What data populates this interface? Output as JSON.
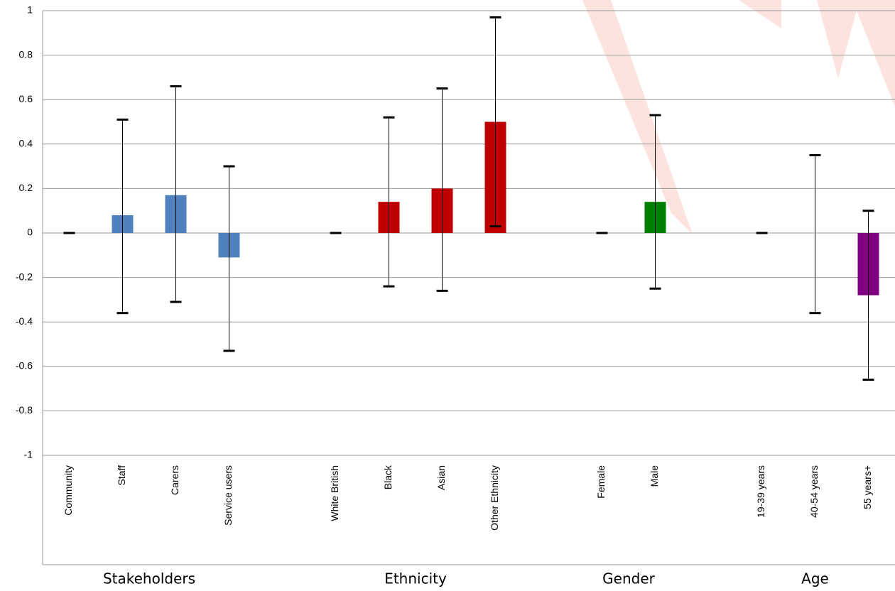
{
  "chart_data": {
    "type": "bar",
    "categories": [
      "Community",
      "Staff",
      "Carers",
      "Service users",
      null,
      "White British",
      "Black",
      "Asian",
      "Other Ethnicity",
      null,
      "Female",
      "Male",
      null,
      "19-39 years",
      "40-54 years",
      "55 years+"
    ],
    "series": [
      {
        "name": "Stakeholders",
        "color": "#4f81bd",
        "values": [
          0,
          0.08,
          0.17,
          -0.11,
          null,
          null,
          null,
          null,
          null,
          null,
          null,
          null,
          null,
          null,
          null,
          null
        ],
        "low": [
          0,
          -0.36,
          -0.31,
          -0.53,
          null,
          null,
          null,
          null,
          null,
          null,
          null,
          null,
          null,
          null,
          null,
          null
        ],
        "high": [
          0,
          0.51,
          0.66,
          0.3,
          null,
          null,
          null,
          null,
          null,
          null,
          null,
          null,
          null,
          null,
          null,
          null
        ]
      },
      {
        "name": "Ethnicity",
        "color": "#c00000",
        "values": [
          null,
          null,
          null,
          null,
          null,
          0,
          0.14,
          0.2,
          0.5,
          null,
          null,
          null,
          null,
          null,
          null,
          null
        ],
        "low": [
          null,
          null,
          null,
          null,
          null,
          0,
          -0.24,
          -0.26,
          0.03,
          null,
          null,
          null,
          null,
          null,
          null,
          null
        ],
        "high": [
          null,
          null,
          null,
          null,
          null,
          0,
          0.52,
          0.65,
          0.97,
          null,
          null,
          null,
          null,
          null,
          null,
          null
        ]
      },
      {
        "name": "Gender",
        "color": "#008000",
        "values": [
          null,
          null,
          null,
          null,
          null,
          null,
          null,
          null,
          null,
          null,
          0,
          0.14,
          null,
          null,
          null,
          null
        ],
        "low": [
          null,
          null,
          null,
          null,
          null,
          null,
          null,
          null,
          null,
          null,
          0,
          -0.25,
          null,
          null,
          null,
          null
        ],
        "high": [
          null,
          null,
          null,
          null,
          null,
          null,
          null,
          null,
          null,
          null,
          0,
          0.53,
          null,
          null,
          null,
          null
        ]
      },
      {
        "name": "Age",
        "color": "#800080",
        "values": [
          null,
          null,
          null,
          null,
          null,
          null,
          null,
          null,
          null,
          null,
          null,
          null,
          null,
          0,
          0,
          -0.28
        ],
        "low": [
          null,
          null,
          null,
          null,
          null,
          null,
          null,
          null,
          null,
          null,
          null,
          null,
          null,
          0,
          -0.36,
          -0.66
        ],
        "high": [
          null,
          null,
          null,
          null,
          null,
          null,
          null,
          null,
          null,
          null,
          null,
          null,
          null,
          0,
          0.35,
          0.1
        ]
      }
    ],
    "ylim": [
      -1,
      1
    ],
    "yticks": [
      -1,
      -0.8,
      -0.6,
      -0.4,
      -0.2,
      0,
      0.2,
      0.4,
      0.6,
      0.8,
      1
    ],
    "grid": true
  }
}
